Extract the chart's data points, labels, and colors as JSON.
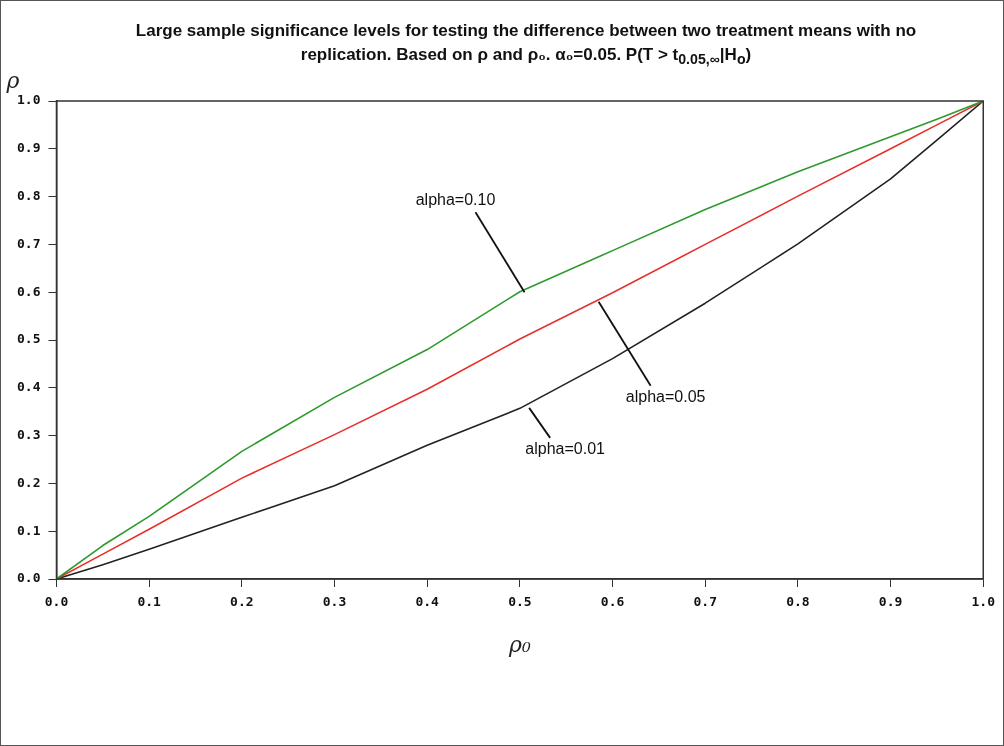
{
  "chart_data": {
    "type": "line",
    "title": "Large sample significance levels for testing the difference between two treatment means with no replication. Based on ρ and ρ₀.  α₀=0.05. P(T > t$_{0.05,∞}$|H$_{o}$)",
    "xlabel": "ρ₀",
    "ylabel": "ρ",
    "x": [
      0,
      0.05,
      0.1,
      0.2,
      0.3,
      0.4,
      0.5,
      0.6,
      0.7,
      0.8,
      0.9,
      0.95,
      1
    ],
    "series": [
      {
        "color": "#2e9a2e",
        "values": [
          0,
          0.07,
          0.131,
          0.267,
          0.38,
          0.48,
          0.601,
          0.687,
          0.773,
          0.852,
          0.925,
          0.962,
          1
        ]
      },
      {
        "color": "#e8302a",
        "values": [
          0,
          0.052,
          0.104,
          0.211,
          0.302,
          0.397,
          0.502,
          0.599,
          0.7,
          0.801,
          0.9,
          0.95,
          1
        ]
      },
      {
        "color": "#222222",
        "values": [
          0,
          0.03,
          0.062,
          0.129,
          0.195,
          0.28,
          0.357,
          0.461,
          0.577,
          0.701,
          0.837,
          0.918,
          1
        ]
      }
    ],
    "annotations": [
      {
        "text": "alpha=0.10",
        "x": 0.505,
        "y": 0.6
      },
      {
        "text": "alpha=0.05",
        "x": 0.585,
        "y": 0.58
      },
      {
        "text": "alpha=0.01",
        "x": 0.51,
        "y": 0.358
      }
    ],
    "xlim": [
      0,
      1
    ],
    "ylim": [
      0,
      1
    ],
    "xticks": [
      {
        "value": 0,
        "label": "0.0"
      },
      0.1,
      0.2,
      0.3,
      0.4,
      0.5,
      0.6,
      0.7,
      0.8,
      0.9,
      {
        "value": 1,
        "label": "1.0"
      }
    ],
    "yticks": [
      {
        "value": 0,
        "label": "0.0"
      },
      0.1,
      0.2,
      0.3,
      0.4,
      0.5,
      0.6,
      0.7,
      0.8,
      0.9,
      {
        "value": 1,
        "label": "1.0"
      }
    ],
    "grid": false,
    "legend": false,
    "marker": "none",
    "line_style": "solid"
  }
}
